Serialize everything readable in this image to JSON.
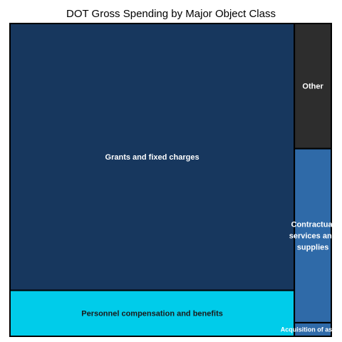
{
  "chart_data": {
    "type": "treemap",
    "title": "DOT Gross Spending by Major Object Class",
    "tiles": [
      {
        "name": "Grants and fixed charges",
        "label_lines": [
          "Grants and fixed charges"
        ],
        "value": 75.5,
        "color": "#17375e",
        "text_color": "#ffffff"
      },
      {
        "name": "Personnel compensation and benefits",
        "label_lines": [
          "Personnel compensation and benefits"
        ],
        "value": 13.0,
        "color": "#00ccea",
        "text_color": "#1a1a1a"
      },
      {
        "name": "Other",
        "label_lines": [
          "Other"
        ],
        "value": 4.6,
        "color": "#2d2d2d",
        "text_color": "#ffffff"
      },
      {
        "name": "Contractual services and supplies",
        "label_lines": [
          "Contractual",
          "services and",
          "supplies"
        ],
        "value": 6.4,
        "color": "#2f6aa8",
        "text_color": "#ffffff"
      },
      {
        "name": "Acquisition of assets",
        "label_lines": [
          "Acquisition of assets"
        ],
        "value": 0.5,
        "color": "#2f6aa8",
        "text_color": "#ffffff"
      }
    ]
  }
}
